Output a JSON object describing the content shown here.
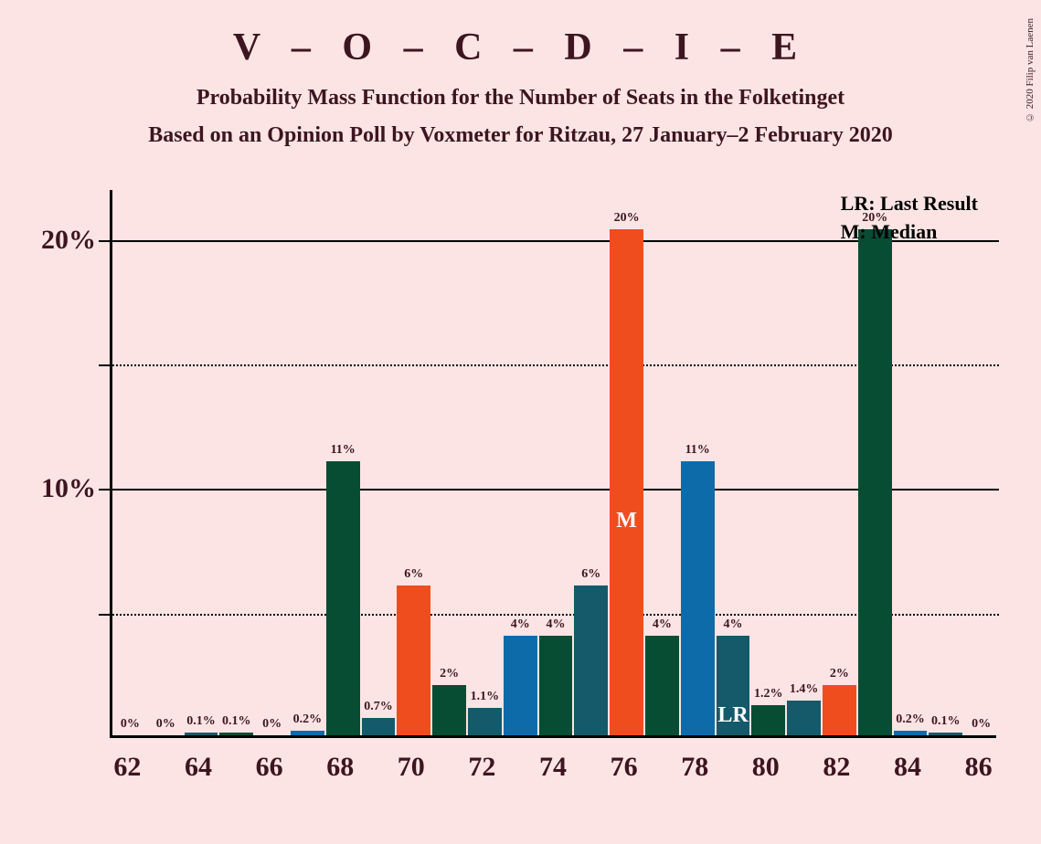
{
  "title": "V – O – C – D – I – E",
  "subtitle1": "Probability Mass Function for the Number of Seats in the Folketinget",
  "subtitle2": "Based on an Opinion Poll by Voxmeter for Ritzau, 27 January–2 February 2020",
  "copyright": "© 2020 Filip van Laenen",
  "legend": {
    "lr": "LR: Last Result",
    "m": "M: Median"
  },
  "chart": {
    "type": "bar",
    "background_color": "#fce4e4",
    "axis_color": "#000000",
    "text_color": "#3d1520",
    "ylim": [
      0,
      22
    ],
    "yticks": [
      {
        "value": 5,
        "label": "",
        "style": "dotted"
      },
      {
        "value": 10,
        "label": "10%",
        "style": "solid"
      },
      {
        "value": 15,
        "label": "",
        "style": "dotted"
      },
      {
        "value": 20,
        "label": "20%",
        "style": "solid"
      }
    ],
    "xticks": [
      62,
      64,
      66,
      68,
      70,
      72,
      74,
      76,
      78,
      80,
      82,
      84,
      86
    ],
    "xlim": [
      61.5,
      86.5
    ],
    "bar_width": 0.95,
    "colors": {
      "blue": "#0e6baa",
      "darkgreen": "#064d34",
      "teal": "#145a6a",
      "orange": "#f04d1e"
    },
    "bars": [
      {
        "x": 62,
        "value": 0,
        "label": "0%",
        "color": "blue"
      },
      {
        "x": 63,
        "value": 0,
        "label": "0%",
        "color": "darkgreen"
      },
      {
        "x": 64,
        "value": 0.1,
        "label": "0.1%",
        "color": "teal"
      },
      {
        "x": 65,
        "value": 0.1,
        "label": "0.1%",
        "color": "darkgreen"
      },
      {
        "x": 66,
        "value": 0,
        "label": "0%",
        "color": "teal"
      },
      {
        "x": 67,
        "value": 0.2,
        "label": "0.2%",
        "color": "blue"
      },
      {
        "x": 68,
        "value": 11,
        "label": "11%",
        "color": "darkgreen"
      },
      {
        "x": 69,
        "value": 0.7,
        "label": "0.7%",
        "color": "teal"
      },
      {
        "x": 70,
        "value": 6,
        "label": "6%",
        "color": "orange"
      },
      {
        "x": 71,
        "value": 2,
        "label": "2%",
        "color": "darkgreen"
      },
      {
        "x": 72,
        "value": 1.1,
        "label": "1.1%",
        "color": "teal"
      },
      {
        "x": 73,
        "value": 4,
        "label": "4%",
        "color": "blue"
      },
      {
        "x": 74,
        "value": 4,
        "label": "4%",
        "color": "darkgreen"
      },
      {
        "x": 75,
        "value": 6,
        "label": "6%",
        "color": "teal"
      },
      {
        "x": 76,
        "value": 20.3,
        "label": "20%",
        "color": "orange",
        "marker": "M"
      },
      {
        "x": 77,
        "value": 4,
        "label": "4%",
        "color": "darkgreen"
      },
      {
        "x": 78,
        "value": 11,
        "label": "11%",
        "color": "blue"
      },
      {
        "x": 79,
        "value": 4,
        "label": "4%",
        "color": "teal",
        "marker": "LR"
      },
      {
        "x": 80,
        "value": 1.2,
        "label": "1.2%",
        "color": "darkgreen"
      },
      {
        "x": 81,
        "value": 1.4,
        "label": "1.4%",
        "color": "teal"
      },
      {
        "x": 82,
        "value": 2,
        "label": "2%",
        "color": "orange"
      },
      {
        "x": 83,
        "value": 20.3,
        "label": "20%",
        "color": "darkgreen"
      },
      {
        "x": 84,
        "value": 0.2,
        "label": "0.2%",
        "color": "blue"
      },
      {
        "x": 85,
        "value": 0.1,
        "label": "0.1%",
        "color": "teal"
      },
      {
        "x": 86,
        "value": 0,
        "label": "0%",
        "color": "darkgreen"
      }
    ]
  }
}
